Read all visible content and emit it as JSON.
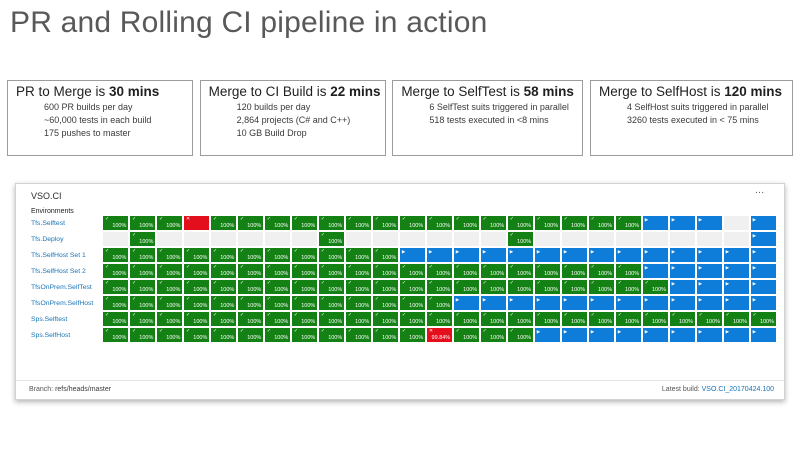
{
  "title": "PR and Rolling CI pipeline in action",
  "stat_boxes": [
    {
      "heading_prefix": "PR to Merge is ",
      "heading_value": "30 mins",
      "lines": [
        "600 PR builds per day",
        "~60,000 tests in each build",
        "175 pushes to master"
      ]
    },
    {
      "heading_prefix": "Merge to CI Build is ",
      "heading_value": "22 mins",
      "lines": [
        "120 builds per day",
        "2,864 projects (C# and C++)",
        "10 GB Build Drop"
      ]
    },
    {
      "heading_prefix": "Merge to SelfTest is ",
      "heading_value": "58 mins",
      "lines": [
        "6 SelfTest suits triggered in parallel",
        "518 tests executed in <8 mins"
      ]
    },
    {
      "heading_prefix": "Merge to SelfHost is ",
      "heading_value": "120 mins",
      "lines": [
        "4 SelfHost suits triggered in parallel",
        "3260 tests executed in < 75 mins"
      ]
    }
  ],
  "dashboard": {
    "title": "VSO.CI",
    "more_options_icon": "ellipsis",
    "environments_label": "Environments",
    "icons": {
      "pass": "✓",
      "running": "▶",
      "fail": "✕"
    },
    "colors": {
      "pass_green": "#148114",
      "running_blue": "#0d7dd9",
      "fail_red": "#e40f1c",
      "empty_slot": "#f0f0f0",
      "link_blue": "#1673b6"
    },
    "pass_value": "100%",
    "environments": [
      {
        "name": "Tfs.Selftest",
        "cells": [
          "g",
          "g",
          "g",
          "r",
          "g",
          "g",
          "g",
          "g",
          "g",
          "g",
          "g",
          "g",
          "g",
          "g",
          "g",
          "g",
          "g",
          "g",
          "g",
          "g",
          "b",
          "b",
          "b",
          "e",
          "b"
        ]
      },
      {
        "name": "Tfs.Deploy",
        "cells": [
          "e",
          "g",
          "e",
          "e",
          "e",
          "e",
          "e",
          "e",
          "g",
          "e",
          "e",
          "e",
          "e",
          "e",
          "e",
          "g",
          "e",
          "e",
          "e",
          "e",
          "e",
          "e",
          "e",
          "e",
          "b"
        ]
      },
      {
        "name": "Tfs.SelfHost Set 1",
        "cells": [
          "g",
          "g",
          "g",
          "g",
          "g",
          "g",
          "g",
          "g",
          "g",
          "g",
          "g",
          "b",
          "b",
          "b",
          "b",
          "b",
          "b",
          "b",
          "b",
          "b",
          "b",
          "b",
          "b",
          "b",
          "b"
        ]
      },
      {
        "name": "Tfs.SelfHost Set 2",
        "cells": [
          "g",
          "g",
          "g",
          "g",
          "g",
          "g",
          "g",
          "g",
          "g",
          "g",
          "g",
          "g",
          "g",
          "g",
          "g",
          "g",
          "g",
          "g",
          "g",
          "g",
          "b",
          "b",
          "b",
          "b",
          "b"
        ]
      },
      {
        "name": "TfsOnPrem.SelfTest",
        "cells": [
          "g",
          "g",
          "g",
          "g",
          "g",
          "g",
          "g",
          "g",
          "g",
          "g",
          "g",
          "g",
          "g",
          "g",
          "g",
          "g",
          "g",
          "g",
          "g",
          "g",
          "g",
          "b",
          "b",
          "b",
          "b"
        ]
      },
      {
        "name": "TfsOnPrem.SelfHost",
        "cells": [
          "g",
          "g",
          "g",
          "g",
          "g",
          "g",
          "g",
          "g",
          "g",
          "g",
          "g",
          "g",
          "g",
          "b",
          "b",
          "b",
          "b",
          "b",
          "b",
          "b",
          "b",
          "b",
          "b",
          "b",
          "b"
        ]
      },
      {
        "name": "Sps.Selftest",
        "cells": [
          "g",
          "g",
          "g",
          "g",
          "g",
          "g",
          "g",
          "g",
          "g",
          "g",
          "g",
          "g",
          "g",
          "g",
          "g",
          "g",
          "g",
          "g",
          "g",
          "g",
          "g",
          "g",
          "g",
          "g",
          "g"
        ]
      },
      {
        "name": "Sps.SelfHost",
        "cells": [
          "g",
          "g",
          "g",
          "g",
          "g",
          "g",
          "g",
          "g",
          "g",
          "g",
          "g",
          "g",
          "r:99.84%",
          "g",
          "g",
          "g",
          "b",
          "b",
          "b",
          "b",
          "b",
          "b",
          "b",
          "b",
          "b"
        ]
      }
    ],
    "footer": {
      "branch_label": "Branch:",
      "branch_value": "refs/heads/master",
      "latest_build_label": "Latest build:",
      "latest_build_value": "VSO.CI_20170424.100"
    }
  }
}
